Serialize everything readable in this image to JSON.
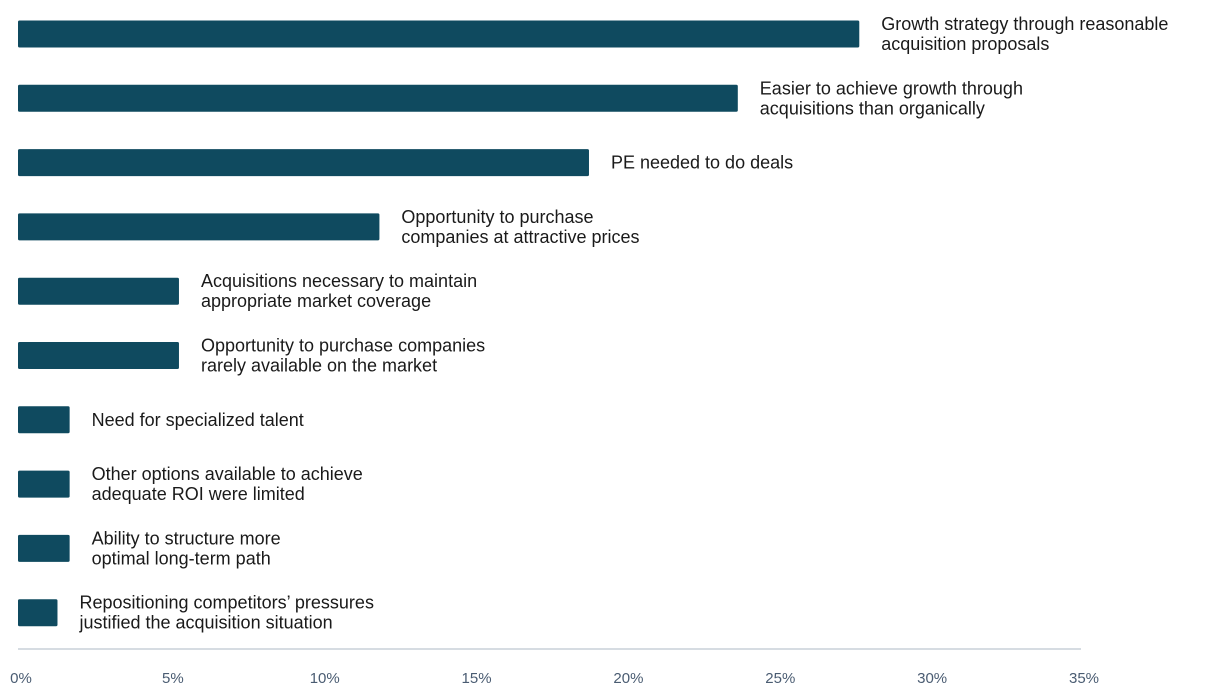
{
  "chart_data": {
    "type": "bar",
    "orientation": "horizontal",
    "title": "",
    "xlabel": "",
    "ylabel": "",
    "categories": [
      [
        "Growth strategy through reasonable",
        "acquisition proposals"
      ],
      [
        "Easier to achieve growth through",
        "acquisitions than organically"
      ],
      [
        "PE needed to do deals"
      ],
      [
        "Opportunity to purchase",
        "companies at attractive prices"
      ],
      [
        "Acquisitions necessary to maintain",
        "appropriate market coverage"
      ],
      [
        "Opportunity to purchase companies",
        "rarely available on the market"
      ],
      [
        "Need for specialized talent"
      ],
      [
        "Other options available to achieve",
        "adequate ROI were limited"
      ],
      [
        "Ability to structure more",
        "optimal long-term path"
      ],
      [
        "Repositioning competitors’ pressures",
        "justified the acquisition situation"
      ]
    ],
    "values": [
      27.7,
      23.7,
      18.8,
      11.9,
      5.3,
      5.3,
      1.7,
      1.7,
      1.7,
      1.3
    ],
    "xlim": [
      0,
      35
    ],
    "ticks": [
      0,
      5,
      10,
      15,
      20,
      25,
      30,
      35
    ],
    "tick_labels": [
      "0%",
      "5%",
      "10%",
      "15%",
      "20%",
      "25%",
      "30%",
      "35%"
    ],
    "bar_color": "#0f4a5f",
    "axis_color": "#c8d0d8",
    "grid": false,
    "legend": "none"
  }
}
